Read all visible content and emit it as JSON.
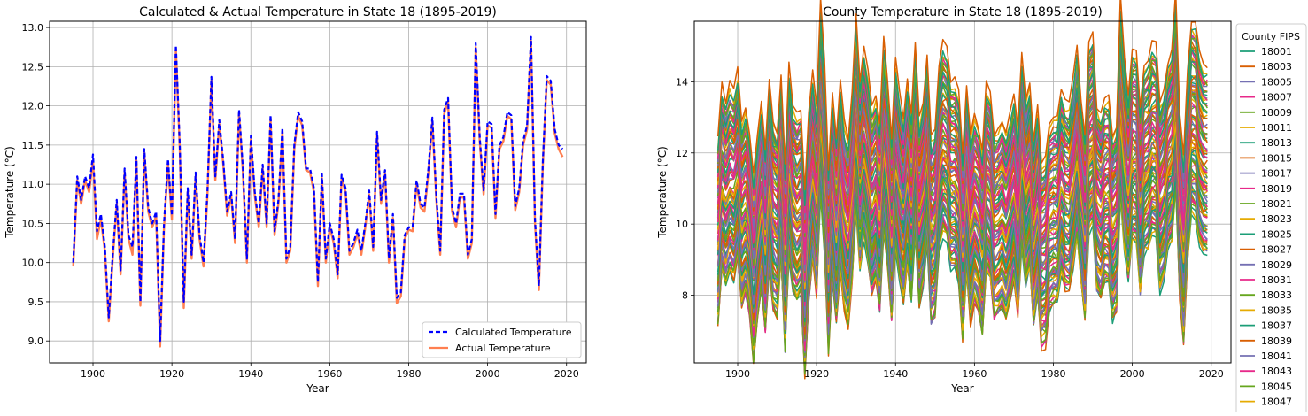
{
  "chart_data": [
    {
      "type": "line",
      "title": "Calculated & Actual Temperature in State 18 (1895-2019)",
      "xlabel": "Year",
      "ylabel": "Temperature (°C)",
      "xlim": [
        1889,
        2025
      ],
      "ylim": [
        8.72,
        13.08
      ],
      "xticks": [
        1900,
        1920,
        1940,
        1960,
        1980,
        2000,
        2020
      ],
      "yticks": [
        9.0,
        9.5,
        10.0,
        10.5,
        11.0,
        11.5,
        12.0,
        12.5,
        13.0
      ],
      "grid": true,
      "legend_position": "lower-right",
      "x_start": 1895,
      "x_step": 1,
      "series": [
        {
          "name": "Calculated Temperature",
          "color": "#0000ff",
          "style": "dashed",
          "values": [
            10.0,
            11.1,
            10.8,
            11.1,
            10.95,
            11.38,
            10.4,
            10.62,
            10.2,
            9.3,
            10.1,
            10.8,
            9.9,
            11.2,
            10.35,
            10.2,
            11.35,
            9.5,
            11.45,
            10.7,
            10.5,
            10.65,
            9.0,
            10.5,
            11.32,
            10.6,
            12.77,
            11.5,
            9.5,
            10.95,
            10.1,
            11.15,
            10.35,
            10.0,
            10.9,
            12.37,
            11.1,
            11.82,
            11.3,
            10.65,
            10.9,
            10.3,
            11.95,
            11.2,
            10.05,
            11.62,
            10.9,
            10.5,
            11.25,
            10.5,
            11.88,
            10.4,
            10.8,
            11.72,
            10.05,
            10.2,
            11.5,
            11.92,
            11.8,
            11.2,
            11.2,
            10.95,
            9.75,
            11.13,
            10.05,
            10.5,
            10.3,
            9.85,
            11.12,
            10.95,
            10.15,
            10.25,
            10.42,
            10.15,
            10.5,
            10.92,
            10.2,
            11.67,
            10.8,
            11.18,
            10.05,
            10.62,
            9.55,
            9.62,
            10.35,
            10.45,
            10.45,
            11.05,
            10.75,
            10.7,
            11.2,
            11.85,
            10.85,
            10.15,
            11.95,
            12.1,
            10.7,
            10.5,
            10.88,
            10.88,
            10.1,
            10.3,
            12.8,
            11.6,
            10.92,
            11.8,
            11.77,
            10.62,
            11.5,
            11.6,
            11.92,
            11.88,
            10.72,
            10.95,
            11.55,
            11.75,
            12.88,
            10.55,
            9.7,
            11.3,
            12.38,
            12.32,
            11.7,
            11.5,
            11.45
          ]
        },
        {
          "name": "Actual Temperature",
          "color": "#ff7f50",
          "style": "solid",
          "values": [
            9.95,
            11.05,
            10.75,
            11.05,
            10.9,
            11.3,
            10.3,
            10.55,
            10.15,
            9.25,
            10.05,
            10.75,
            9.85,
            11.15,
            10.3,
            10.1,
            11.3,
            9.45,
            11.4,
            10.65,
            10.45,
            10.6,
            8.93,
            10.45,
            11.25,
            10.55,
            12.72,
            11.45,
            9.42,
            10.9,
            10.05,
            11.1,
            10.3,
            9.95,
            10.85,
            12.32,
            11.05,
            11.77,
            11.25,
            10.6,
            10.85,
            10.25,
            11.9,
            11.15,
            10.0,
            11.57,
            10.85,
            10.45,
            11.2,
            10.45,
            11.83,
            10.35,
            10.75,
            11.67,
            10.0,
            10.15,
            11.45,
            11.87,
            11.75,
            11.18,
            11.15,
            10.9,
            9.7,
            11.08,
            10.0,
            10.45,
            10.25,
            9.8,
            11.07,
            10.9,
            10.1,
            10.2,
            10.37,
            10.1,
            10.45,
            10.87,
            10.15,
            11.62,
            10.75,
            11.13,
            10.0,
            10.57,
            9.48,
            9.57,
            10.3,
            10.42,
            10.4,
            11.0,
            10.7,
            10.65,
            11.15,
            11.8,
            10.8,
            10.1,
            11.9,
            12.05,
            10.65,
            10.45,
            10.83,
            10.83,
            10.05,
            10.25,
            12.75,
            11.55,
            10.87,
            11.75,
            11.72,
            10.57,
            11.45,
            11.55,
            11.87,
            11.83,
            10.67,
            10.9,
            11.5,
            11.7,
            12.83,
            10.5,
            9.65,
            11.25,
            12.33,
            12.27,
            11.65,
            11.45,
            11.35
          ]
        }
      ]
    },
    {
      "type": "line",
      "title": "County Temperature in State 18 (1895-2019)",
      "xlabel": "Year",
      "ylabel": "Temperature (°C)",
      "xlim": [
        1889,
        2025
      ],
      "ylim": [
        6.1,
        15.7
      ],
      "xticks": [
        1900,
        1920,
        1940,
        1960,
        1980,
        2000,
        2020
      ],
      "yticks": [
        8,
        10,
        12,
        14
      ],
      "grid": true,
      "legend_title": "County FIPS",
      "legend_position": "outside-right",
      "legend_entries": [
        "18001",
        "18003",
        "18005",
        "18007",
        "18009",
        "18011",
        "18013",
        "18015",
        "18017",
        "18019",
        "18021",
        "18023",
        "18025",
        "18027",
        "18029",
        "18031",
        "18033",
        "18035",
        "18037",
        "18039",
        "18041",
        "18043",
        "18045",
        "18047"
      ],
      "palette": [
        "#1b9e77",
        "#d95f02",
        "#7570b3",
        "#e7298a",
        "#66a61e",
        "#e6ab02"
      ],
      "num_series": 92,
      "x_start": 1895,
      "x_step": 1,
      "mean_profile": [
        10.0,
        11.1,
        10.8,
        11.1,
        10.95,
        11.38,
        10.4,
        10.62,
        10.2,
        9.3,
        10.1,
        10.8,
        9.9,
        11.2,
        10.35,
        10.2,
        11.35,
        9.5,
        11.45,
        10.7,
        10.5,
        10.65,
        9.0,
        10.5,
        11.32,
        10.6,
        12.77,
        11.5,
        9.5,
        10.95,
        10.1,
        11.15,
        10.35,
        10.0,
        10.9,
        12.37,
        11.1,
        11.82,
        11.3,
        10.65,
        10.9,
        10.3,
        11.95,
        11.2,
        10.05,
        11.62,
        10.9,
        10.5,
        11.25,
        10.5,
        11.88,
        10.4,
        10.8,
        11.72,
        10.05,
        10.2,
        11.5,
        11.92,
        11.8,
        11.2,
        11.2,
        10.95,
        9.75,
        11.13,
        10.05,
        10.5,
        10.3,
        9.85,
        11.12,
        10.95,
        10.15,
        10.25,
        10.42,
        10.15,
        10.5,
        10.92,
        10.2,
        11.67,
        10.8,
        11.18,
        10.05,
        10.62,
        9.55,
        9.62,
        10.35,
        10.45,
        10.45,
        11.05,
        10.75,
        10.7,
        11.2,
        11.85,
        10.85,
        10.15,
        11.95,
        12.1,
        10.7,
        10.5,
        10.88,
        10.88,
        10.1,
        10.3,
        12.8,
        11.6,
        10.92,
        11.8,
        11.77,
        10.62,
        11.5,
        11.6,
        11.92,
        11.88,
        10.72,
        10.95,
        11.55,
        11.75,
        12.88,
        10.55,
        9.7,
        11.3,
        12.38,
        12.32,
        11.7,
        11.5,
        11.45
      ]
    }
  ]
}
